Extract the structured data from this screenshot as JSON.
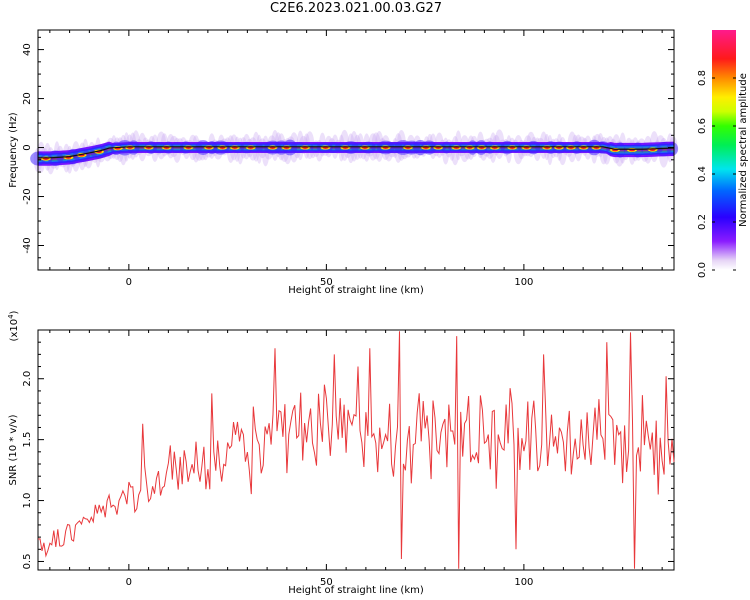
{
  "title": "C2E6.2023.021.00.03.G27",
  "colors": {
    "trace": "#e8383b",
    "axis": "#000000",
    "background": "#ffffff"
  },
  "chart_data": [
    {
      "type": "heatmap",
      "xlabel": "Height of straight line (km)",
      "ylabel": "Frequency (Hz)",
      "xlim": [
        -23,
        138
      ],
      "ylim": [
        -50,
        48
      ],
      "xticks": [
        0,
        50,
        100
      ],
      "yticks": [
        -40,
        -20,
        0,
        20,
        40
      ],
      "colorbar": {
        "label": "Normalized spectral amplitude",
        "range": [
          0,
          1
        ],
        "ticks": [
          "0.0",
          "0.2",
          "0.4",
          "0.6",
          "0.8"
        ],
        "tick_values": [
          0,
          0.2,
          0.4,
          0.6,
          0.8
        ],
        "colormap": "rainbow (white → purple → blue → cyan → green → yellow → red → magenta)"
      },
      "ridge": {
        "description": "narrow energy band near 0 Hz",
        "x": [
          -23,
          -20,
          -15,
          -10,
          -7,
          -5,
          0,
          20,
          60,
          100,
          120,
          123,
          130,
          138
        ],
        "freq": [
          -4.5,
          -4.5,
          -4,
          -2.5,
          -1.5,
          -0.5,
          0,
          0,
          0,
          0,
          0,
          -1,
          -1,
          -0.5
        ]
      }
    },
    {
      "type": "line",
      "xlabel": "Height of straight line (km)",
      "ylabel": "SNR (10 * v/v)",
      "yscale_label": "(x10^4)",
      "yscale_base": "(x10",
      "yscale_exp": "4",
      "yscale_close": ")",
      "xlim": [
        -23,
        138
      ],
      "ylim": [
        0.43,
        2.4
      ],
      "xticks": [
        0,
        50,
        100
      ],
      "yticks": [
        0.5,
        1.0,
        1.5,
        2.0
      ],
      "ytick_labels": [
        "0.5",
        "1.0",
        "1.5",
        "2.0"
      ],
      "series": [
        {
          "color": "#e8383b",
          "trend": {
            "x": [
              -23,
              -15,
              -5,
              5,
              15,
              25,
              35,
              45,
              60,
              80,
              100,
              120,
              138
            ],
            "y": [
              0.62,
              0.72,
              0.95,
              1.12,
              1.28,
              1.4,
              1.48,
              1.52,
              1.55,
              1.55,
              1.55,
              1.52,
              1.5
            ]
          },
          "spikes": [
            {
              "x": 3.5,
              "y": 1.63
            },
            {
              "x": 21,
              "y": 1.88
            },
            {
              "x": 37,
              "y": 2.25
            },
            {
              "x": 52,
              "y": 2.2
            },
            {
              "x": 58,
              "y": 2.1
            },
            {
              "x": 61,
              "y": 2.25
            },
            {
              "x": 68.5,
              "y": 2.39
            },
            {
              "x": 69,
              "y": 0.52
            },
            {
              "x": 83,
              "y": 2.35
            },
            {
              "x": 83.5,
              "y": 0.44
            },
            {
              "x": 98,
              "y": 0.6
            },
            {
              "x": 105,
              "y": 2.2
            },
            {
              "x": 121,
              "y": 2.3
            },
            {
              "x": 127,
              "y": 2.38
            },
            {
              "x": 128,
              "y": 0.44
            },
            {
              "x": 136,
              "y": 2.02
            },
            {
              "x": 134,
              "y": 1.05
            }
          ]
        }
      ]
    }
  ]
}
